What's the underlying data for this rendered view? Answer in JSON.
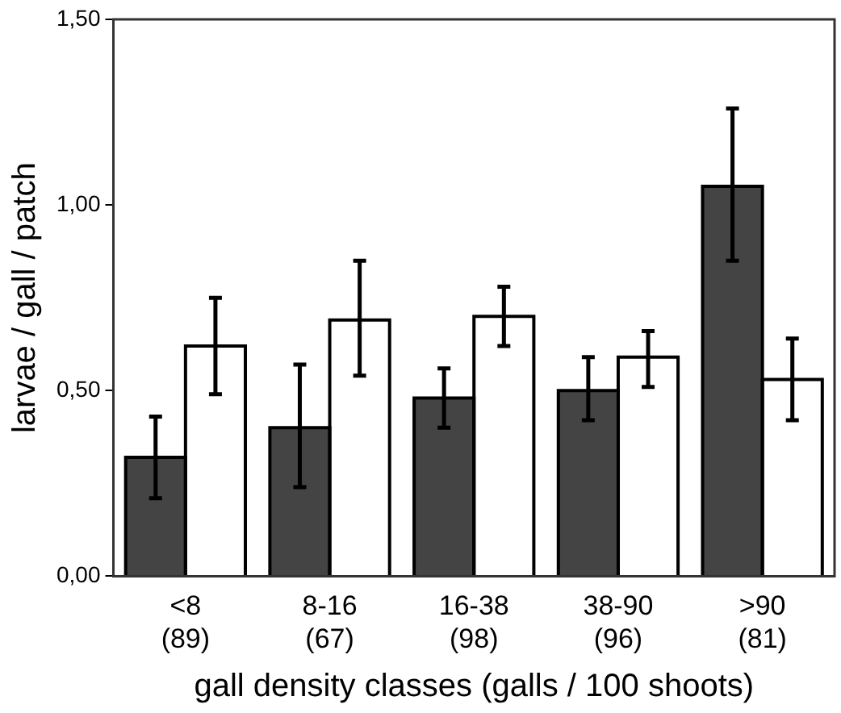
{
  "chart_data": {
    "type": "bar",
    "xlabel": "gall density classes (galls / 100 shoots)",
    "ylabel": "larvae / gall / patch",
    "categories": [
      "<8\n(89)",
      "8-16\n(67)",
      "16-38\n(98)",
      "38-90\n(96)",
      ">90\n(81)"
    ],
    "series": [
      {
        "color": "#444444",
        "values": [
          0.32,
          0.4,
          0.48,
          0.5,
          1.05
        ],
        "errors": [
          [
            0.21,
            0.43
          ],
          [
            0.24,
            0.57
          ],
          [
            0.4,
            0.56
          ],
          [
            0.42,
            0.59
          ],
          [
            0.85,
            1.26
          ]
        ]
      },
      {
        "color": "#ffffff",
        "values": [
          0.62,
          0.69,
          0.7,
          0.59,
          0.53
        ],
        "errors": [
          [
            0.49,
            0.75
          ],
          [
            0.54,
            0.85
          ],
          [
            0.62,
            0.78
          ],
          [
            0.51,
            0.66
          ],
          [
            0.42,
            0.64
          ]
        ]
      }
    ],
    "ylim": [
      0,
      1.5
    ],
    "yticks": [
      {
        "value": 0,
        "label": "0,00"
      },
      {
        "value": 0.5,
        "label": "0,50"
      },
      {
        "value": 1,
        "label": "1,00"
      },
      {
        "value": 1.5,
        "label": "1,50"
      }
    ],
    "grid": false,
    "legend": false
  }
}
